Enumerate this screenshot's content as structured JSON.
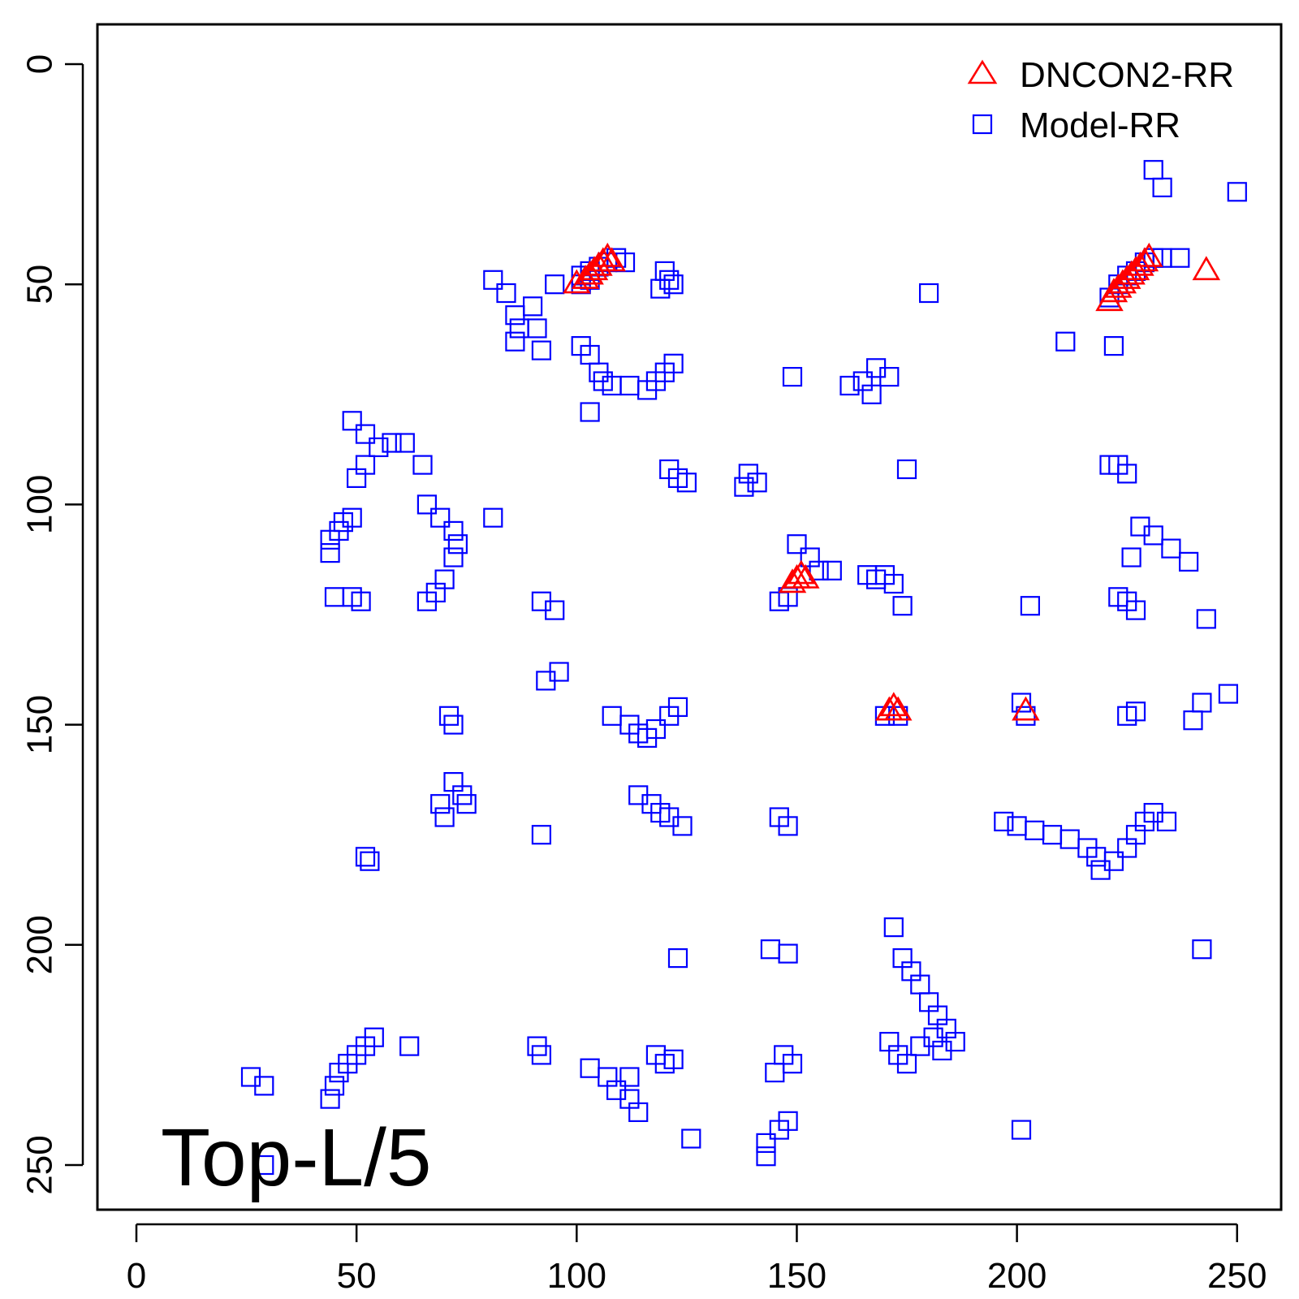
{
  "chart_data": {
    "type": "scatter",
    "title": "",
    "xlabel": "",
    "ylabel": "",
    "xlim": [
      -9,
      260
    ],
    "ylim": [
      259,
      -9
    ],
    "y_reversed": true,
    "x_ticks": [
      0,
      50,
      100,
      150,
      200,
      250
    ],
    "y_ticks": [
      0,
      50,
      100,
      150,
      200,
      250
    ],
    "x_tick_labels": [
      "0",
      "50",
      "100",
      "150",
      "200",
      "250"
    ],
    "y_tick_labels": [
      "0",
      "50",
      "100",
      "150",
      "200",
      "250"
    ],
    "grid": false,
    "legend_position": "top-right",
    "annotation": "Top-L/5",
    "annotation_position": "bottom-left",
    "series": [
      {
        "name": "Model-RR",
        "marker": "square",
        "color": "#0000ff",
        "points": [
          [
            231,
            24
          ],
          [
            233,
            28
          ],
          [
            250,
            29
          ],
          [
            223,
            50
          ],
          [
            225,
            48
          ],
          [
            227,
            47
          ],
          [
            229,
            45
          ],
          [
            231,
            44
          ],
          [
            233,
            44
          ],
          [
            237,
            44
          ],
          [
            221,
            53
          ],
          [
            222,
            64
          ],
          [
            211,
            63
          ],
          [
            101,
            48
          ],
          [
            103,
            47
          ],
          [
            105,
            46
          ],
          [
            107,
            45
          ],
          [
            109,
            44
          ],
          [
            111,
            45
          ],
          [
            101,
            50
          ],
          [
            103,
            49
          ],
          [
            120,
            47
          ],
          [
            121,
            49
          ],
          [
            122,
            50
          ],
          [
            119,
            51
          ],
          [
            180,
            52
          ],
          [
            81,
            49
          ],
          [
            84,
            52
          ],
          [
            86,
            57
          ],
          [
            87,
            60
          ],
          [
            86,
            63
          ],
          [
            90,
            55
          ],
          [
            91,
            60
          ],
          [
            92,
            65
          ],
          [
            95,
            50
          ],
          [
            101,
            64
          ],
          [
            103,
            66
          ],
          [
            105,
            70
          ],
          [
            106,
            72
          ],
          [
            108,
            73
          ],
          [
            112,
            73
          ],
          [
            116,
            74
          ],
          [
            118,
            72
          ],
          [
            120,
            70
          ],
          [
            122,
            68
          ],
          [
            103,
            79
          ],
          [
            149,
            71
          ],
          [
            168,
            69
          ],
          [
            171,
            71
          ],
          [
            165,
            72
          ],
          [
            162,
            73
          ],
          [
            167,
            75
          ],
          [
            175,
            92
          ],
          [
            49,
            81
          ],
          [
            52,
            84
          ],
          [
            55,
            87
          ],
          [
            58,
            86
          ],
          [
            61,
            86
          ],
          [
            65,
            91
          ],
          [
            52,
            91
          ],
          [
            50,
            94
          ],
          [
            121,
            92
          ],
          [
            123,
            94
          ],
          [
            125,
            95
          ],
          [
            139,
            93
          ],
          [
            141,
            95
          ],
          [
            138,
            96
          ],
          [
            221,
            91
          ],
          [
            223,
            91
          ],
          [
            225,
            93
          ],
          [
            66,
            100
          ],
          [
            69,
            103
          ],
          [
            72,
            106
          ],
          [
            73,
            109
          ],
          [
            72,
            112
          ],
          [
            70,
            117
          ],
          [
            68,
            120
          ],
          [
            66,
            122
          ],
          [
            81,
            103
          ],
          [
            44,
            108
          ],
          [
            46,
            106
          ],
          [
            47,
            104
          ],
          [
            49,
            103
          ],
          [
            44,
            111
          ],
          [
            45,
            121
          ],
          [
            49,
            121
          ],
          [
            51,
            122
          ],
          [
            150,
            109
          ],
          [
            153,
            112
          ],
          [
            155,
            115
          ],
          [
            158,
            115
          ],
          [
            148,
            121
          ],
          [
            146,
            122
          ],
          [
            166,
            116
          ],
          [
            168,
            117
          ],
          [
            170,
            116
          ],
          [
            172,
            118
          ],
          [
            174,
            123
          ],
          [
            228,
            105
          ],
          [
            231,
            107
          ],
          [
            235,
            110
          ],
          [
            239,
            113
          ],
          [
            226,
            112
          ],
          [
            223,
            121
          ],
          [
            225,
            122
          ],
          [
            227,
            124
          ],
          [
            203,
            123
          ],
          [
            243,
            126
          ],
          [
            92,
            122
          ],
          [
            95,
            124
          ],
          [
            93,
            140
          ],
          [
            96,
            138
          ],
          [
            71,
            148
          ],
          [
            72,
            150
          ],
          [
            108,
            148
          ],
          [
            112,
            150
          ],
          [
            114,
            152
          ],
          [
            116,
            153
          ],
          [
            118,
            151
          ],
          [
            121,
            148
          ],
          [
            123,
            146
          ],
          [
            170,
            148
          ],
          [
            173,
            148
          ],
          [
            201,
            145
          ],
          [
            202,
            148
          ],
          [
            225,
            148
          ],
          [
            227,
            147
          ],
          [
            240,
            149
          ],
          [
            242,
            145
          ],
          [
            248,
            143
          ],
          [
            72,
            163
          ],
          [
            74,
            166
          ],
          [
            75,
            168
          ],
          [
            69,
            168
          ],
          [
            70,
            171
          ],
          [
            114,
            166
          ],
          [
            117,
            168
          ],
          [
            119,
            170
          ],
          [
            121,
            171
          ],
          [
            124,
            173
          ],
          [
            146,
            171
          ],
          [
            148,
            173
          ],
          [
            92,
            175
          ],
          [
            197,
            172
          ],
          [
            200,
            173
          ],
          [
            204,
            174
          ],
          [
            208,
            175
          ],
          [
            212,
            176
          ],
          [
            216,
            178
          ],
          [
            218,
            180
          ],
          [
            219,
            183
          ],
          [
            222,
            181
          ],
          [
            225,
            178
          ],
          [
            227,
            175
          ],
          [
            229,
            172
          ],
          [
            231,
            170
          ],
          [
            234,
            172
          ],
          [
            52,
            180
          ],
          [
            53,
            181
          ],
          [
            172,
            196
          ],
          [
            174,
            203
          ],
          [
            176,
            206
          ],
          [
            178,
            209
          ],
          [
            180,
            213
          ],
          [
            182,
            216
          ],
          [
            184,
            219
          ],
          [
            186,
            222
          ],
          [
            181,
            221
          ],
          [
            183,
            224
          ],
          [
            171,
            222
          ],
          [
            173,
            225
          ],
          [
            175,
            227
          ],
          [
            178,
            223
          ],
          [
            144,
            201
          ],
          [
            148,
            202
          ],
          [
            123,
            203
          ],
          [
            54,
            221
          ],
          [
            52,
            223
          ],
          [
            50,
            225
          ],
          [
            48,
            227
          ],
          [
            46,
            229
          ],
          [
            45,
            232
          ],
          [
            44,
            235
          ],
          [
            62,
            223
          ],
          [
            26,
            230
          ],
          [
            29,
            232
          ],
          [
            91,
            223
          ],
          [
            92,
            225
          ],
          [
            103,
            228
          ],
          [
            107,
            230
          ],
          [
            109,
            233
          ],
          [
            112,
            235
          ],
          [
            114,
            238
          ],
          [
            112,
            230
          ],
          [
            118,
            225
          ],
          [
            120,
            227
          ],
          [
            122,
            226
          ],
          [
            147,
            225
          ],
          [
            149,
            227
          ],
          [
            145,
            229
          ],
          [
            148,
            240
          ],
          [
            146,
            242
          ],
          [
            143,
            245
          ],
          [
            143,
            248
          ],
          [
            126,
            244
          ],
          [
            201,
            242
          ],
          [
            242,
            201
          ],
          [
            29,
            250
          ]
        ]
      },
      {
        "name": "DNCON2-RR",
        "marker": "triangle",
        "color": "#ff0000",
        "points": [
          [
            100,
            50
          ],
          [
            102,
            49
          ],
          [
            103,
            48
          ],
          [
            104,
            47
          ],
          [
            105,
            46
          ],
          [
            106,
            45
          ],
          [
            107,
            44
          ],
          [
            108,
            45
          ],
          [
            221,
            54
          ],
          [
            222,
            52
          ],
          [
            223,
            51
          ],
          [
            224,
            50
          ],
          [
            225,
            49
          ],
          [
            226,
            48
          ],
          [
            227,
            47
          ],
          [
            228,
            46
          ],
          [
            229,
            45
          ],
          [
            230,
            44
          ],
          [
            243,
            47
          ],
          [
            149,
            118
          ],
          [
            150,
            117
          ],
          [
            151,
            116
          ],
          [
            152,
            117
          ],
          [
            171,
            147
          ],
          [
            172,
            146
          ],
          [
            173,
            147
          ],
          [
            202,
            147
          ]
        ]
      }
    ]
  }
}
